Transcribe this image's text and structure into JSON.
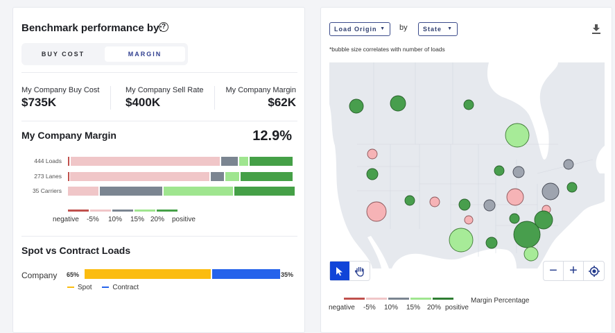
{
  "left": {
    "title": "Benchmark performance by:",
    "help_icon": "help-circle-icon",
    "toggle": {
      "options": [
        "BUY COST",
        "MARGIN"
      ],
      "selected": "MARGIN"
    },
    "kpis": [
      {
        "label": "My Company Buy Cost",
        "value": "$735K"
      },
      {
        "label": "My Company Sell Rate",
        "value": "$400K"
      },
      {
        "label": "My Company Margin",
        "value": "$62K"
      }
    ],
    "margin": {
      "title": "My Company Margin",
      "value": "12.9%",
      "rows": [
        {
          "label": "444 Loads",
          "segments": [
            0.012,
            0.66,
            0.079,
            0.046,
            0.193
          ]
        },
        {
          "label": "273 Lanes",
          "segments": [
            0.009,
            0.617,
            0.064,
            0.067,
            0.233
          ]
        },
        {
          "label": "35 Carriers",
          "segments": [
            0.0,
            0.14,
            0.28,
            0.31,
            0.27
          ]
        }
      ],
      "legend": [
        "negative",
        "-5%",
        "10%",
        "15%",
        "20%",
        "positive"
      ],
      "colors": [
        "#c0504d",
        "#f0c6c8",
        "#7b8591",
        "#9fe58f",
        "#45a047"
      ]
    },
    "spot": {
      "title": "Spot vs Contract Loads",
      "row_label": "Company",
      "spot_pct": "65%",
      "contract_pct": "35%",
      "spot_share": 0.65,
      "legend": {
        "spot": "Spot",
        "contract": "Contract"
      },
      "colors": {
        "spot": "#fbbc10",
        "contract": "#2563eb"
      }
    }
  },
  "right": {
    "dropdown1": "Load Origin",
    "by": "by",
    "dropdown2": "State",
    "download_icon": "download-icon",
    "note": "*bubble size correlates with number of loads",
    "tools": {
      "select": "pointer-icon",
      "pan": "hand-icon",
      "selected": "select"
    },
    "zoom": {
      "out": "−",
      "in": "+",
      "locate": "locate-icon"
    },
    "legend": [
      "negative",
      "-5%",
      "10%",
      "15%",
      "20%",
      "positive"
    ],
    "legend_title": "Margin Percentage",
    "legend_colors": [
      "#c0504d",
      "#f0c6c8",
      "#7b8591",
      "#9fe58f",
      "#2e7d32"
    ],
    "bubbles": [
      {
        "region": "British Columbia",
        "cat": "positive",
        "size": 10
      },
      {
        "region": "Alberta",
        "cat": "positive",
        "size": 11
      },
      {
        "region": "Manitoba",
        "cat": "positive",
        "size": 7
      },
      {
        "region": "Ontario",
        "cat": "20%",
        "size": 17
      },
      {
        "region": "Washington",
        "cat": "-5%",
        "size": 7
      },
      {
        "region": "Oregon",
        "cat": "positive",
        "size": 8
      },
      {
        "region": "Wisconsin",
        "cat": "positive",
        "size": 7
      },
      {
        "region": "Michigan",
        "cat": "10%",
        "size": 8
      },
      {
        "region": "New York North",
        "cat": "10%",
        "size": 7
      },
      {
        "region": "Massachusetts",
        "cat": "positive",
        "size": 7
      },
      {
        "region": "Pennsylvania",
        "cat": "10%",
        "size": 12
      },
      {
        "region": "Ohio/Indiana",
        "cat": "-5%",
        "size": 12
      },
      {
        "region": "Utah",
        "cat": "positive",
        "size": 7
      },
      {
        "region": "Colorado",
        "cat": "-5%",
        "size": 7
      },
      {
        "region": "Kansas",
        "cat": "positive",
        "size": 8
      },
      {
        "region": "Missouri",
        "cat": "10%",
        "size": 8
      },
      {
        "region": "California",
        "cat": "-5%",
        "size": 14
      },
      {
        "region": "Virginia",
        "cat": "-5%",
        "size": 6
      },
      {
        "region": "North Carolina",
        "cat": "positive",
        "size": 13
      },
      {
        "region": "Oklahoma",
        "cat": "-5%",
        "size": 6
      },
      {
        "region": "Tennessee",
        "cat": "positive",
        "size": 7
      },
      {
        "region": "Georgia",
        "cat": "positive",
        "size": 19
      },
      {
        "region": "Texas",
        "cat": "20%",
        "size": 17
      },
      {
        "region": "Louisiana",
        "cat": "positive",
        "size": 8
      },
      {
        "region": "Florida",
        "cat": "20%",
        "size": 10
      }
    ]
  }
}
